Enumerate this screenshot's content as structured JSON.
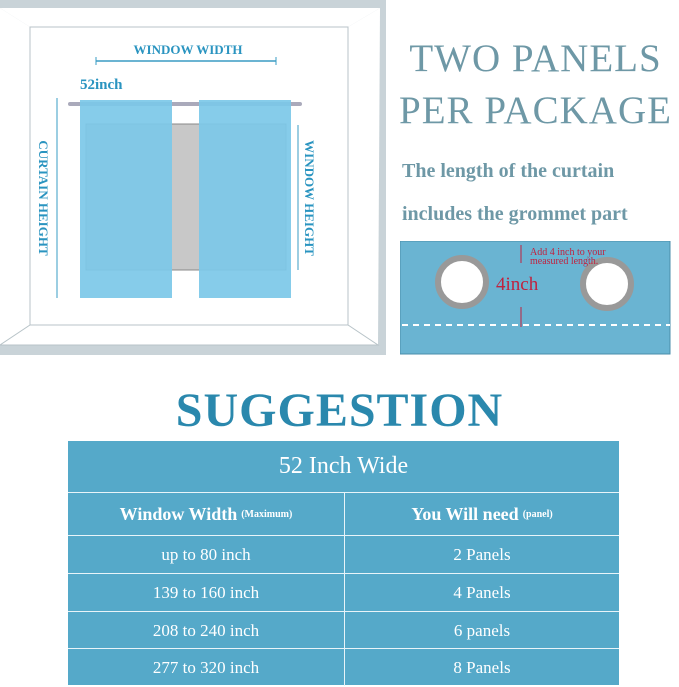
{
  "diagram": {
    "window_width_label": "WINDOW WIDTH",
    "width_value": "52inch",
    "curtain_height_label": "CURTAIN HEIGHT",
    "window_height_label": "WINDOW HEIGHT",
    "curtain_color": "#7cc8e8"
  },
  "headline": {
    "line1": "TWO PANELS",
    "line2": "PER PACKAGE"
  },
  "note": {
    "line1": "The length of the curtain",
    "line2": "includes the grommet  part"
  },
  "grommet": {
    "measure": "4inch",
    "note_line1": "Add 4 inch to your",
    "note_line2": "measured length.",
    "panel_color": "#6ab4d2"
  },
  "suggestion": {
    "title": "SUGGESTION",
    "table_title": "52 Inch Wide",
    "col1": "Window Width",
    "col1_note": "(Maximum)",
    "col2": "You Will need",
    "col2_note": "(panel)",
    "rows": [
      [
        "up to 80 inch",
        "2 Panels"
      ],
      [
        "139 to 160 inch",
        "4 Panels"
      ],
      [
        "208 to 240 inch",
        "6 panels"
      ],
      [
        "277 to 320 inch",
        "8 Panels"
      ]
    ],
    "table_color": "#55a9c9"
  }
}
